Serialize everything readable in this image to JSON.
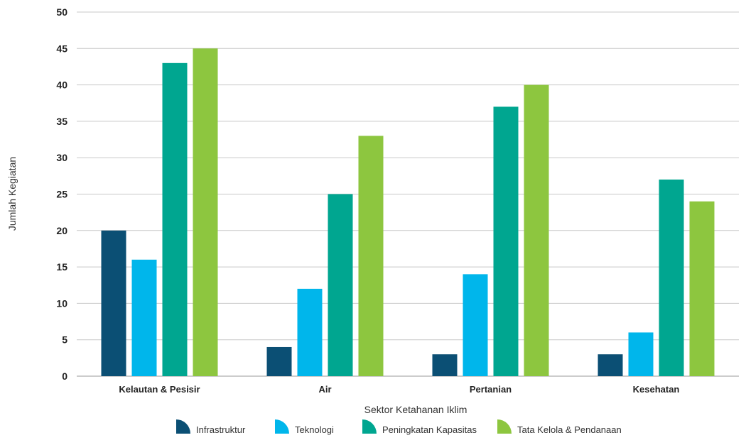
{
  "chart_data": {
    "type": "bar",
    "categories": [
      "Kelautan & Pesisir",
      "Air",
      "Pertanian",
      "Kesehatan"
    ],
    "series": [
      {
        "name": "Infrastruktur",
        "values": [
          20,
          4,
          3,
          3
        ],
        "color": "#0b4f74"
      },
      {
        "name": "Teknologi",
        "values": [
          16,
          12,
          14,
          6
        ],
        "color": "#00b6eb"
      },
      {
        "name": "Peningkatan Kapasitas",
        "values": [
          43,
          25,
          37,
          27
        ],
        "color": "#00a690"
      },
      {
        "name": "Tata Kelola & Pendanaan",
        "values": [
          45,
          33,
          40,
          24
        ],
        "color": "#8dc63f"
      }
    ],
    "xlabel": "Sektor Ketahanan Iklim",
    "ylabel": "Jumlah Kegiatan",
    "ylim": [
      0,
      50
    ],
    "yticks": [
      0,
      5,
      10,
      15,
      20,
      25,
      30,
      35,
      40,
      45,
      50
    ],
    "grid": true,
    "legend_position": "bottom"
  }
}
